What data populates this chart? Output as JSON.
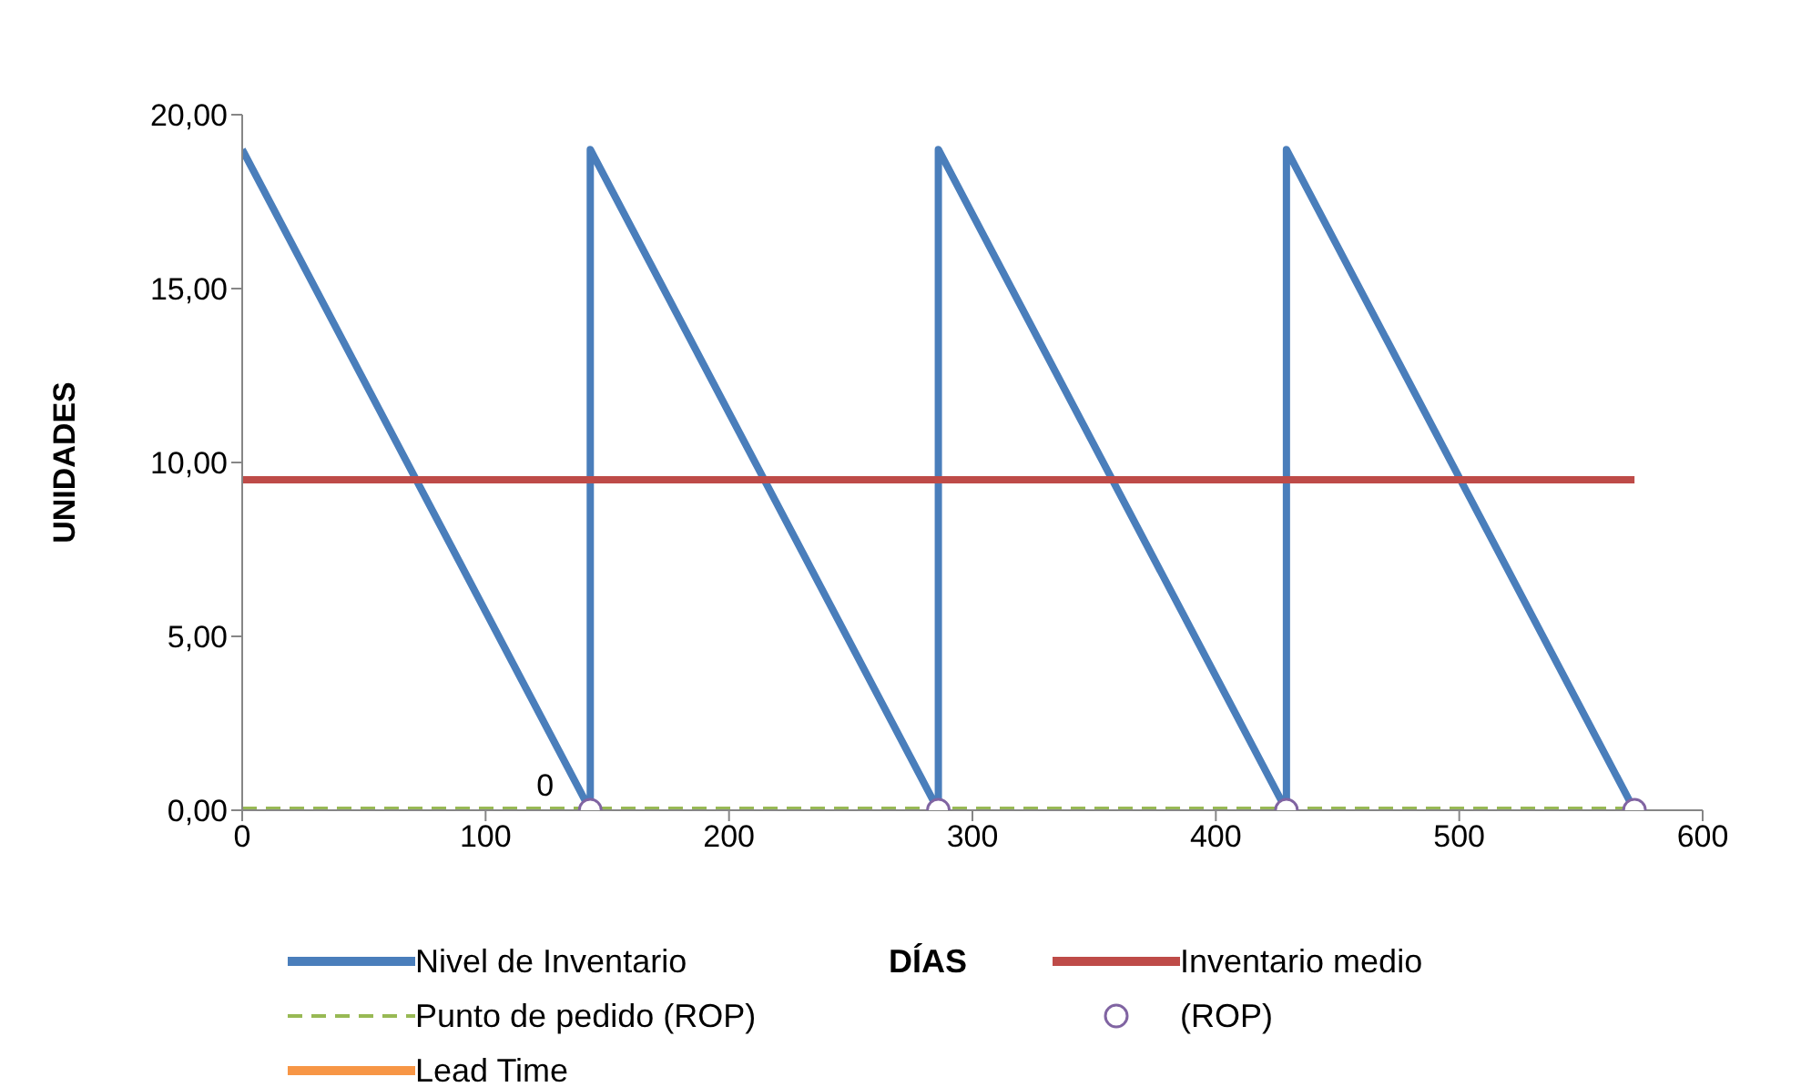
{
  "chart_data": {
    "type": "line",
    "xlabel": "DÍAS",
    "ylabel": "UNIDADES",
    "xlim": [
      0,
      600
    ],
    "xticks": [
      0,
      100,
      200,
      300,
      400,
      500,
      600
    ],
    "ylim": [
      0,
      20
    ],
    "yticks": [
      {
        "value": 0,
        "label": "0,00"
      },
      {
        "value": 5,
        "label": "5,00"
      },
      {
        "value": 10,
        "label": "10,00"
      },
      {
        "value": 15,
        "label": "15,00"
      },
      {
        "value": 20,
        "label": "20,00"
      }
    ],
    "grid": false,
    "legend": "bottom",
    "annotations": [
      {
        "text": "0",
        "x": 143,
        "y": 0
      }
    ],
    "series": [
      {
        "name": "Nivel de Inventario",
        "color": "#4a7ebb",
        "x": [
          0,
          143,
          143,
          286,
          286,
          429,
          429,
          572
        ],
        "values": [
          19,
          0,
          19,
          0,
          19,
          0,
          19,
          0
        ]
      },
      {
        "name": "Inventario medio",
        "color": "#be4b48",
        "x": [
          0,
          572
        ],
        "values": [
          9.5,
          9.5
        ]
      },
      {
        "name": "Punto de pedido (ROP)",
        "line_style": "dashed",
        "color": "#98b954",
        "x": [
          0,
          572
        ],
        "values": [
          0,
          0
        ]
      },
      {
        "name": "(ROP)",
        "type": "scatter",
        "marker": "circle",
        "color": "#8064a2",
        "x": [
          143,
          286,
          429,
          572
        ],
        "values": [
          0,
          0,
          0,
          0
        ]
      },
      {
        "name": "Lead Time",
        "color": "#f79646"
      }
    ]
  }
}
